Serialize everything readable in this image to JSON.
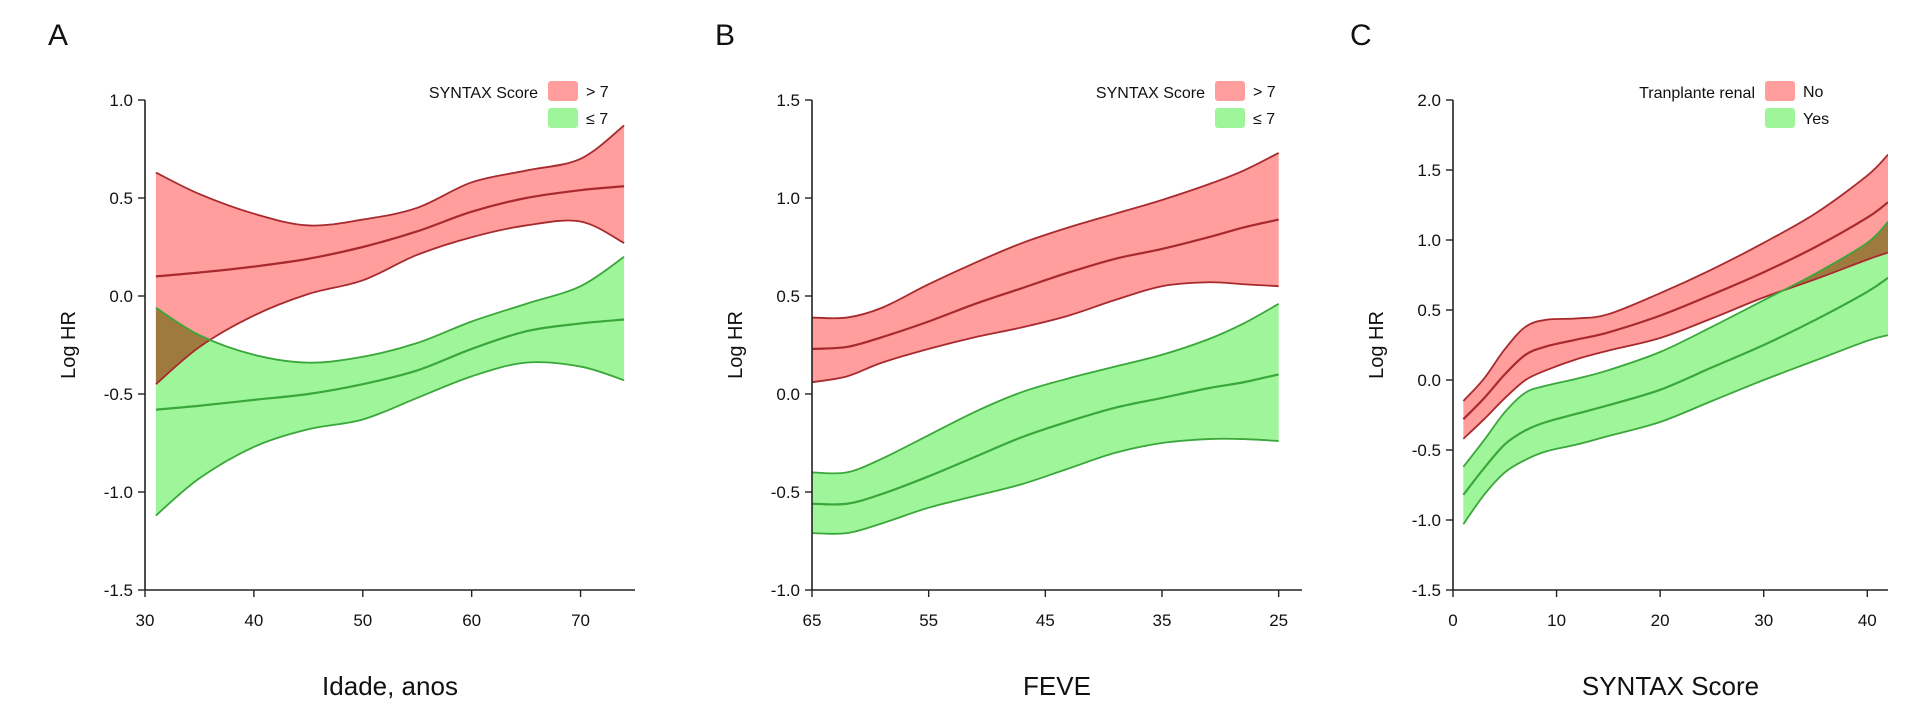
{
  "colors": {
    "high_fill": "#ff9e9c",
    "high_line": "#a82a2e",
    "low_fill": "#9ff59a",
    "low_line": "#3aa73a",
    "overlap_fill": "#9e7a3e"
  },
  "chart_data": [
    {
      "type": "area",
      "panel": "A",
      "xlabel": "Idade, anos",
      "ylabel": "Log HR",
      "xlim": [
        30,
        75
      ],
      "ylim": [
        -1.5,
        1.0
      ],
      "xticks": [
        30,
        40,
        50,
        60,
        70
      ],
      "yticks": [
        1.0,
        0.5,
        0.0,
        -0.5,
        -1.0,
        -1.5
      ],
      "ytick_labels": [
        "1.0",
        "0.5",
        "0.0",
        "-0.5",
        "-1.0",
        "-1.5"
      ],
      "legend": {
        "title": "SYNTAX Score",
        "position": "top-right",
        "labels": [
          "> 7",
          "≤ 7"
        ]
      },
      "series": [
        {
          "name": "> 7",
          "x": [
            31,
            35,
            40,
            45,
            50,
            55,
            60,
            65,
            70,
            74
          ],
          "mid": [
            0.1,
            0.12,
            0.15,
            0.19,
            0.25,
            0.33,
            0.43,
            0.5,
            0.54,
            0.56
          ],
          "upper": [
            0.63,
            0.52,
            0.42,
            0.36,
            0.39,
            0.45,
            0.58,
            0.64,
            0.7,
            0.87
          ],
          "lower": [
            -0.45,
            -0.26,
            -0.1,
            0.01,
            0.08,
            0.21,
            0.3,
            0.36,
            0.38,
            0.27
          ]
        },
        {
          "name": "≤ 7",
          "x": [
            31,
            35,
            40,
            45,
            50,
            55,
            60,
            65,
            70,
            74
          ],
          "mid": [
            -0.58,
            -0.56,
            -0.53,
            -0.5,
            -0.45,
            -0.38,
            -0.27,
            -0.18,
            -0.14,
            -0.12
          ],
          "upper": [
            -0.06,
            -0.2,
            -0.3,
            -0.34,
            -0.31,
            -0.24,
            -0.13,
            -0.04,
            0.05,
            0.2
          ],
          "lower": [
            -1.12,
            -0.93,
            -0.77,
            -0.68,
            -0.63,
            -0.52,
            -0.41,
            -0.34,
            -0.36,
            -0.43
          ]
        }
      ]
    },
    {
      "type": "area",
      "panel": "B",
      "xlabel": "FEVE",
      "ylabel": "Log HR",
      "xlim": [
        65,
        23
      ],
      "ylim": [
        -1.0,
        1.5
      ],
      "xticks": [
        65,
        55,
        45,
        35,
        25
      ],
      "yticks": [
        1.5,
        1.0,
        0.5,
        0.0,
        -0.5,
        -1.0
      ],
      "ytick_labels": [
        "1.5",
        "1.0",
        "0.5",
        "0.0",
        "-0.5",
        "-1.0"
      ],
      "legend": {
        "title": "SYNTAX Score",
        "position": "top-right",
        "labels": [
          "> 7",
          "≤ 7"
        ]
      },
      "series": [
        {
          "name": "> 7",
          "x": [
            65,
            62,
            59,
            55,
            51,
            47,
            43,
            39,
            35,
            31,
            28,
            25
          ],
          "mid": [
            0.23,
            0.24,
            0.29,
            0.37,
            0.46,
            0.54,
            0.62,
            0.69,
            0.74,
            0.8,
            0.85,
            0.89
          ],
          "upper": [
            0.39,
            0.39,
            0.44,
            0.56,
            0.67,
            0.77,
            0.85,
            0.92,
            0.99,
            1.07,
            1.14,
            1.23
          ],
          "lower": [
            0.06,
            0.09,
            0.16,
            0.23,
            0.29,
            0.34,
            0.4,
            0.48,
            0.55,
            0.57,
            0.56,
            0.55
          ]
        },
        {
          "name": "≤ 7",
          "x": [
            65,
            62,
            59,
            55,
            51,
            47,
            43,
            39,
            35,
            31,
            28,
            25
          ],
          "mid": [
            -0.56,
            -0.56,
            -0.51,
            -0.42,
            -0.32,
            -0.22,
            -0.14,
            -0.07,
            -0.02,
            0.03,
            0.06,
            0.1
          ],
          "upper": [
            -0.4,
            -0.4,
            -0.33,
            -0.21,
            -0.09,
            0.01,
            0.08,
            0.14,
            0.2,
            0.28,
            0.36,
            0.46
          ],
          "lower": [
            -0.71,
            -0.71,
            -0.66,
            -0.58,
            -0.52,
            -0.46,
            -0.38,
            -0.3,
            -0.25,
            -0.23,
            -0.23,
            -0.24
          ]
        }
      ]
    },
    {
      "type": "area",
      "panel": "C",
      "xlabel": "SYNTAX Score",
      "ylabel": "Log HR",
      "xlim": [
        0,
        42
      ],
      "ylim": [
        -1.5,
        2.0
      ],
      "xticks": [
        0,
        10,
        20,
        30,
        40
      ],
      "yticks": [
        2.0,
        1.5,
        1.0,
        0.5,
        0.0,
        -0.5,
        -1.0,
        -1.5
      ],
      "ytick_labels": [
        "2.0",
        "1.5",
        "1.0",
        "0.5",
        "0.0",
        "-0.5",
        "-1.0",
        "-1.5"
      ],
      "legend": {
        "title": "Tranplante renal",
        "position": "top-right",
        "labels": [
          "No",
          "Yes"
        ]
      },
      "series": [
        {
          "name": "No",
          "x": [
            1,
            3,
            5,
            7,
            9,
            12,
            15,
            20,
            25,
            30,
            35,
            40,
            42
          ],
          "mid": [
            -0.28,
            -0.13,
            0.04,
            0.18,
            0.24,
            0.29,
            0.34,
            0.46,
            0.61,
            0.77,
            0.95,
            1.16,
            1.27
          ],
          "upper": [
            -0.15,
            0.01,
            0.22,
            0.38,
            0.43,
            0.44,
            0.47,
            0.62,
            0.79,
            0.98,
            1.19,
            1.46,
            1.61
          ],
          "lower": [
            -0.42,
            -0.28,
            -0.13,
            0.0,
            0.07,
            0.15,
            0.21,
            0.3,
            0.44,
            0.59,
            0.72,
            0.86,
            0.91
          ]
        },
        {
          "name": "Yes",
          "x": [
            1,
            3,
            5,
            7,
            9,
            12,
            15,
            20,
            25,
            30,
            35,
            40,
            42
          ],
          "mid": [
            -0.82,
            -0.63,
            -0.46,
            -0.36,
            -0.3,
            -0.24,
            -0.18,
            -0.07,
            0.09,
            0.25,
            0.43,
            0.63,
            0.73
          ],
          "upper": [
            -0.62,
            -0.43,
            -0.23,
            -0.09,
            -0.04,
            0.01,
            0.07,
            0.2,
            0.38,
            0.57,
            0.76,
            0.98,
            1.13
          ],
          "lower": [
            -1.03,
            -0.82,
            -0.66,
            -0.57,
            -0.51,
            -0.46,
            -0.4,
            -0.3,
            -0.15,
            0.0,
            0.14,
            0.28,
            0.32
          ]
        }
      ]
    }
  ]
}
